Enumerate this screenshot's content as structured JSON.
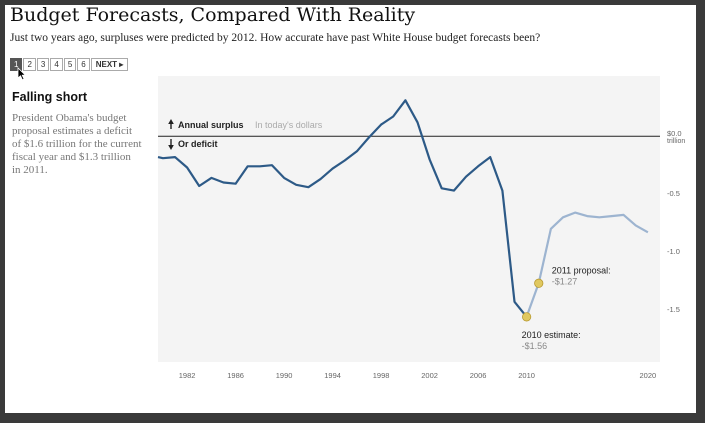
{
  "title": "Budget Forecasts, Compared With Reality",
  "subtitle": "Just two years ago, surpluses were predicted by 2012. How accurate have past White House budget forecasts been?",
  "pager": {
    "pages": [
      "1",
      "2",
      "3",
      "4",
      "5",
      "6"
    ],
    "active": "1",
    "next_label": "NEXT"
  },
  "sidebar": {
    "heading": "Falling short",
    "text": "President Obama's budget proposal estimates a deficit of $1.6 trillion for the current fiscal year and $1.3 trillion in 2011."
  },
  "legend": {
    "surplus": "Annual surplus",
    "surplus_note": "In today's dollars",
    "deficit": "Or deficit"
  },
  "colors": {
    "actual": "#2d5a87",
    "projection": "#9db4d0",
    "marker": "#e0c860",
    "axis_text": "#666666"
  },
  "chart_data": {
    "type": "line",
    "title": "Budget Forecasts, Compared With Reality",
    "ylabel": "trillion",
    "xlim": [
      1979.6,
      2021
    ],
    "ylim": [
      -1.95,
      0.52
    ],
    "x_ticks": [
      1982,
      1986,
      1990,
      1994,
      1998,
      2002,
      2006,
      2010,
      2020
    ],
    "y_ticks": [
      {
        "value": 0,
        "label": "$0.0",
        "sublabel": "trillion"
      },
      {
        "value": -0.5,
        "label": "-0.5"
      },
      {
        "value": -1.0,
        "label": "-1.0"
      },
      {
        "value": -1.5,
        "label": "-1.5"
      }
    ],
    "series": [
      {
        "kind": "actual",
        "x": [
          1979.6,
          1980,
          1981,
          1982,
          1983,
          1984,
          1985,
          1986,
          1987,
          1988,
          1989,
          1990,
          1991,
          1992,
          1993,
          1994,
          1995,
          1996,
          1997,
          1998,
          1999,
          2000,
          2001,
          2002,
          2003,
          2004,
          2005,
          2006,
          2007,
          2008,
          2009,
          2010
        ],
        "y": [
          -0.18,
          -0.19,
          -0.18,
          -0.27,
          -0.43,
          -0.36,
          -0.4,
          -0.41,
          -0.26,
          -0.26,
          -0.25,
          -0.36,
          -0.42,
          -0.44,
          -0.37,
          -0.28,
          -0.21,
          -0.13,
          -0.01,
          0.1,
          0.17,
          0.31,
          0.12,
          -0.2,
          -0.45,
          -0.47,
          -0.35,
          -0.26,
          -0.18,
          -0.47,
          -1.43,
          -1.56
        ]
      },
      {
        "kind": "projection",
        "x": [
          2010,
          2011,
          2012,
          2013,
          2014,
          2015,
          2016,
          2017,
          2018,
          2019,
          2020
        ],
        "y": [
          -1.56,
          -1.27,
          -0.8,
          -0.7,
          -0.66,
          -0.69,
          -0.7,
          -0.69,
          -0.68,
          -0.77,
          -0.83
        ]
      }
    ],
    "annotations": [
      {
        "x": 2011,
        "y": -1.27,
        "title": "2011 proposal:",
        "value": "-$1.27"
      },
      {
        "x": 2010,
        "y": -1.56,
        "title": "2010 estimate:",
        "value": "-$1.56"
      }
    ]
  }
}
